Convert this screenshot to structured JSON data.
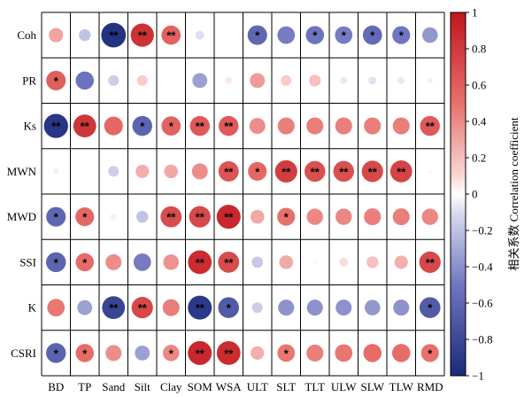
{
  "chart_data": {
    "type": "heatmap",
    "subtype": "correlation-circles",
    "rows": [
      "Coh",
      "PR",
      "Ks",
      "MWN",
      "MWD",
      "SSI",
      "K",
      "CSRI"
    ],
    "columns": [
      "BD",
      "TP",
      "Sand",
      "Silt",
      "Clay",
      "SOM",
      "WSA",
      "ULT",
      "SLT",
      "TLT",
      "ULW",
      "SLW",
      "TLW",
      "RMD"
    ],
    "values": [
      [
        0.32,
        -0.22,
        -0.95,
        0.85,
        0.58,
        -0.12,
        0.0,
        -0.6,
        -0.48,
        -0.52,
        -0.48,
        -0.58,
        -0.5,
        -0.38
      ],
      [
        0.6,
        -0.52,
        -0.18,
        0.18,
        0.0,
        -0.35,
        0.08,
        0.35,
        0.18,
        0.22,
        -0.08,
        -0.1,
        -0.08,
        -0.05
      ],
      [
        -0.92,
        0.82,
        0.55,
        -0.62,
        0.58,
        0.62,
        0.62,
        0.4,
        0.45,
        0.45,
        0.45,
        0.45,
        0.45,
        0.62
      ],
      [
        -0.05,
        0.0,
        -0.18,
        0.28,
        0.3,
        0.4,
        0.65,
        0.55,
        0.78,
        0.68,
        0.68,
        0.72,
        0.75,
        -0.03
      ],
      [
        -0.6,
        0.55,
        0.06,
        -0.22,
        0.7,
        0.72,
        0.9,
        0.3,
        0.5,
        0.42,
        0.42,
        0.45,
        0.45,
        0.42
      ],
      [
        -0.62,
        0.52,
        0.4,
        -0.48,
        0.38,
        0.88,
        0.7,
        -0.2,
        0.3,
        0.03,
        0.12,
        0.22,
        0.28,
        0.72
      ],
      [
        0.48,
        -0.35,
        -0.82,
        0.72,
        0.45,
        -0.9,
        -0.68,
        -0.18,
        -0.4,
        -0.4,
        -0.4,
        -0.38,
        -0.4,
        -0.68
      ],
      [
        -0.62,
        0.52,
        0.4,
        -0.35,
        0.42,
        0.9,
        0.88,
        0.28,
        0.48,
        0.45,
        0.48,
        0.52,
        0.52,
        0.5
      ]
    ],
    "significance": [
      [
        "",
        "",
        "**",
        "**",
        "**",
        "",
        "",
        "*",
        "",
        "*",
        "*",
        "*",
        "*",
        ""
      ],
      [
        "*",
        "",
        "",
        "",
        "",
        "",
        "",
        "",
        "",
        "",
        "",
        "",
        "",
        ""
      ],
      [
        "**",
        "**",
        "",
        "*",
        "*",
        "**",
        "**",
        "",
        "",
        "",
        "",
        "",
        "",
        "**"
      ],
      [
        "",
        "",
        "",
        "",
        "",
        "",
        "**",
        "*",
        "**",
        "**",
        "**",
        "**",
        "**",
        ""
      ],
      [
        "*",
        "*",
        "",
        "",
        "**",
        "**",
        "**",
        "",
        "*",
        "",
        "",
        "",
        "",
        ""
      ],
      [
        "*",
        "*",
        "",
        "",
        "",
        "**",
        "**",
        "",
        "",
        "",
        "",
        "",
        "",
        "**"
      ],
      [
        "",
        "",
        "**",
        "**",
        "",
        "**",
        "*",
        "",
        "",
        "",
        "",
        "",
        "",
        "*"
      ],
      [
        "*",
        "*",
        "",
        "",
        "*",
        "**",
        "**",
        "",
        "*",
        "",
        "",
        "",
        "",
        "*"
      ]
    ],
    "colorbar": {
      "min": -1,
      "max": 1,
      "ticks": [
        "1",
        "0.8",
        "0.6",
        "0.4",
        "0.2",
        "0",
        "−0.2",
        "−0.4",
        "−0.6",
        "−0.8",
        "−1"
      ],
      "label": "相关系数 Correlation coefficient",
      "colors": {
        "negative": "#1a2a7a",
        "zero": "#ffffff",
        "positive": "#c0161e"
      }
    }
  }
}
